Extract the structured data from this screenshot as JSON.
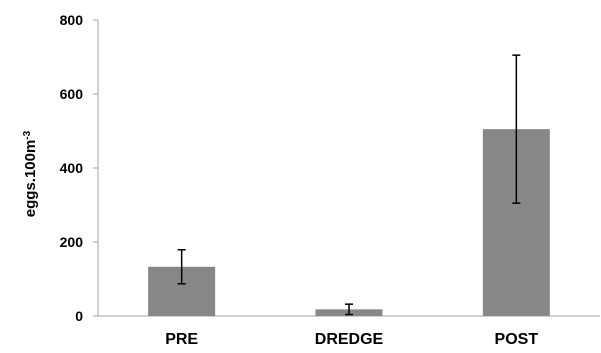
{
  "chart_data": {
    "type": "bar",
    "categories": [
      "PRE",
      "DREDGE",
      "POST"
    ],
    "series": [
      {
        "values": [
          133,
          18,
          505
        ],
        "error": [
          46,
          14,
          200
        ],
        "color": "#878787"
      }
    ],
    "ylabel_base": "eggs.100m",
    "ylabel_superscript": "-3",
    "y_ticks": [
      "0",
      "200",
      "400",
      "600",
      "800"
    ],
    "ylim": [
      0,
      800
    ],
    "grid": false,
    "legend": "none"
  }
}
